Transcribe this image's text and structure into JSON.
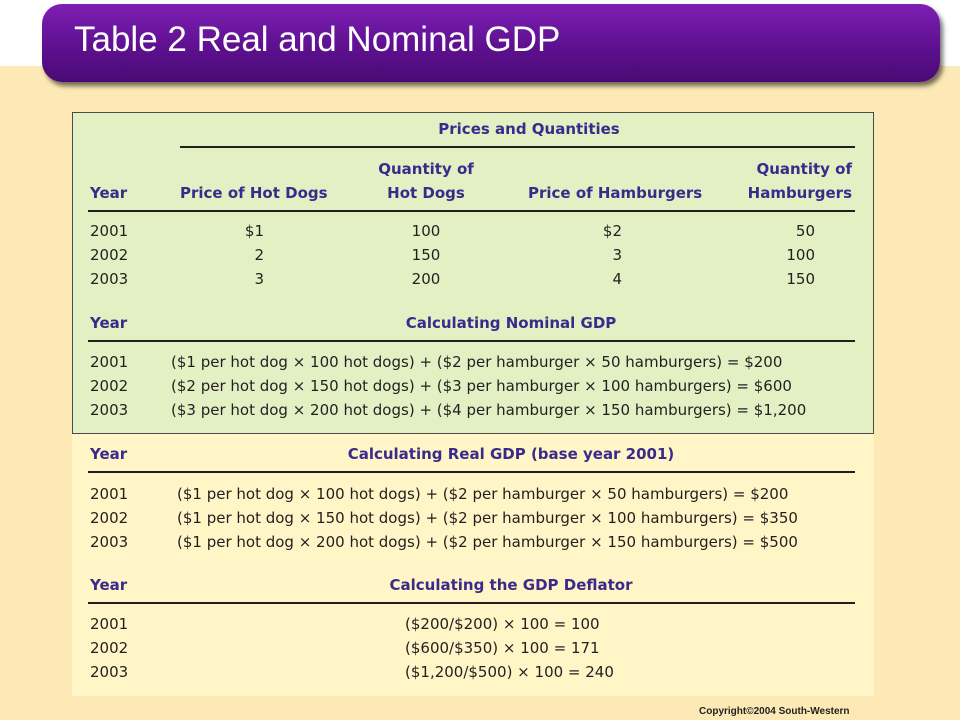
{
  "slide": {
    "title": "Table 2 Real and Nominal GDP",
    "copyright": "Copyright©2004  South-Western"
  },
  "prices_quantities": {
    "group_header": "Prices and Quantities",
    "headers": {
      "year": "Year",
      "price_hot_dogs": "Price of Hot Dogs",
      "quantity_hot_dogs_line1": "Quantity of",
      "quantity_hot_dogs_line2": "Hot Dogs",
      "price_hamburgers": "Price of Hamburgers",
      "quantity_hamburgers_line1": "Quantity of",
      "quantity_hamburgers_line2": "Hamburgers"
    },
    "rows": [
      {
        "year": "2001",
        "price_hot_dogs": "$1",
        "quantity_hot_dogs": "100",
        "price_hamburgers": "$2",
        "quantity_hamburgers": "50"
      },
      {
        "year": "2002",
        "price_hot_dogs": "2",
        "quantity_hot_dogs": "150",
        "price_hamburgers": "3",
        "quantity_hamburgers": "100"
      },
      {
        "year": "2003",
        "price_hot_dogs": "3",
        "quantity_hot_dogs": "200",
        "price_hamburgers": "4",
        "quantity_hamburgers": "150"
      }
    ]
  },
  "nominal_gdp": {
    "year_header": "Year",
    "header": "Calculating Nominal GDP",
    "rows": [
      {
        "year": "2001",
        "formula": "($1 per hot dog × 100 hot dogs) + ($2 per hamburger × 50 hamburgers) = $200"
      },
      {
        "year": "2002",
        "formula": "($2 per hot dog × 150 hot dogs) + ($3 per hamburger × 100 hamburgers) = $600"
      },
      {
        "year": "2003",
        "formula": "($3 per hot dog × 200 hot dogs) + ($4 per hamburger × 150 hamburgers) = $1,200"
      }
    ]
  },
  "real_gdp": {
    "year_header": "Year",
    "header": "Calculating Real GDP (base year 2001)",
    "rows": [
      {
        "year": "2001",
        "formula": "($1 per hot dog × 100 hot dogs) + ($2 per hamburger × 50 hamburgers) = $200"
      },
      {
        "year": "2002",
        "formula": "($1 per hot dog × 150 hot dogs) + ($2 per hamburger × 100 hamburgers) = $350"
      },
      {
        "year": "2003",
        "formula": "($1 per hot dog × 200 hot dogs) + ($2 per hamburger × 150 hamburgers) = $500"
      }
    ]
  },
  "gdp_deflator": {
    "year_header": "Year",
    "header": "Calculating the GDP Deflator",
    "rows": [
      {
        "year": "2001",
        "formula": "($200/$200) × 100 = 100"
      },
      {
        "year": "2002",
        "formula": "($600/$350) × 100 = 171"
      },
      {
        "year": "2003",
        "formula": "($1,200/$500) × 100 = 240"
      }
    ]
  },
  "colors": {
    "title_bar": "#5e1090",
    "green_panel": "#e2f0c4",
    "yellow_panel": "#fff5c6",
    "background": "#fce9b6",
    "header_text": "#3a2a8c"
  }
}
